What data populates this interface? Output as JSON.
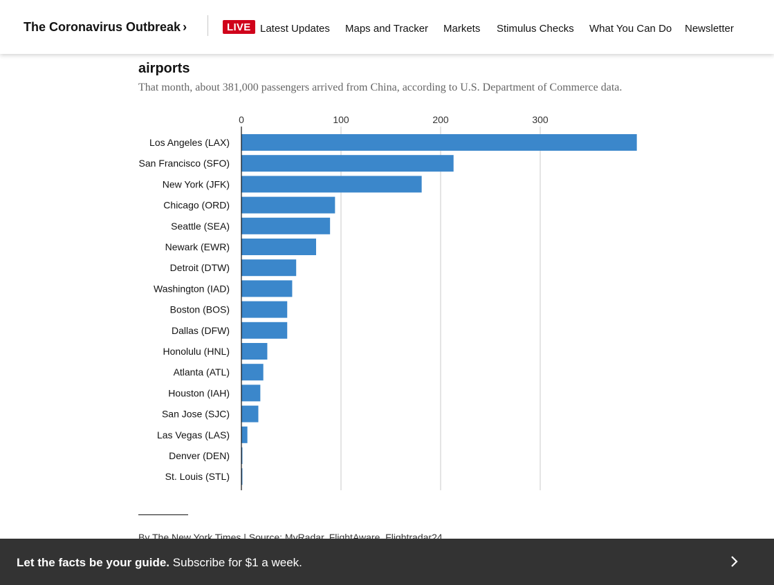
{
  "header": {
    "title": "The Coronavirus Outbreak",
    "title_chevron": "›",
    "live_badge": "LIVE",
    "nav": [
      {
        "label": "Latest Updates"
      },
      {
        "label": "Maps and Tracker"
      },
      {
        "label": "Markets"
      },
      {
        "label": "Stimulus Checks"
      },
      {
        "label": "What You Can Do"
      },
      {
        "label": "Newsletter"
      }
    ],
    "live_color": "#d0021b"
  },
  "article": {
    "chart_title_visible": "airports",
    "chart_subtitle": "That month, about 381,000 passengers arrived from China, according to U.S. Department of Commerce data.",
    "credit": "By The New York Times | Source: MyRadar, FlightAware, Flightradar24"
  },
  "chart_data": {
    "type": "bar",
    "orientation": "horizontal",
    "categories": [
      "Los Angeles (LAX)",
      "San Francisco (SFO)",
      "New York (JFK)",
      "Chicago (ORD)",
      "Seattle (SEA)",
      "Newark (EWR)",
      "Detroit (DTW)",
      "Washington (IAD)",
      "Boston (BOS)",
      "Dallas (DFW)",
      "Honolulu (HNL)",
      "Atlanta (ATL)",
      "Houston (IAH)",
      "San Jose (SJC)",
      "Las Vegas (LAS)",
      "Denver (DEN)",
      "St. Louis (STL)"
    ],
    "values": [
      397,
      213,
      181,
      94,
      89,
      75,
      55,
      51,
      46,
      46,
      26,
      22,
      19,
      17,
      6,
      1,
      1
    ],
    "xticks": [
      0,
      100,
      200,
      300
    ],
    "xlim": [
      0,
      397
    ],
    "grid": true,
    "bar_color": "#3b87cb"
  },
  "banner": {
    "bold": "Let the facts be your guide.",
    "rest": "Subscribe for $1 a week."
  }
}
